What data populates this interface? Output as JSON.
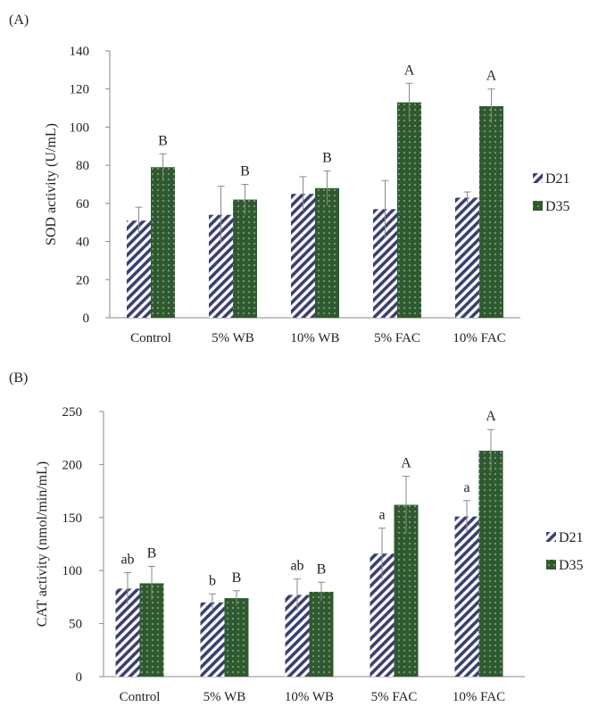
{
  "chart_data": [
    {
      "type": "bar",
      "panel_label": "(A)",
      "title": "",
      "xlabel": "",
      "ylabel": "SOD activity (U/mL)",
      "ylim": [
        0,
        140
      ],
      "yticks": [
        "0",
        "20",
        "40",
        "60",
        "80",
        "100",
        "120",
        "140"
      ],
      "categories": [
        "Control",
        "5% WB",
        "10% WB",
        "5% FAC",
        "10% FAC"
      ],
      "series": [
        {
          "name": "D21",
          "values": [
            51,
            54,
            65,
            57,
            63
          ],
          "errors": [
            7,
            15,
            9,
            15,
            3
          ],
          "letters": [
            "",
            "",
            "",
            "",
            ""
          ]
        },
        {
          "name": "D35",
          "values": [
            79,
            62,
            68,
            113,
            111
          ],
          "errors": [
            7,
            8,
            9,
            10,
            9
          ],
          "letters": [
            "B",
            "B",
            "B",
            "A",
            "A"
          ]
        }
      ],
      "legend": [
        "D21",
        "D35"
      ]
    },
    {
      "type": "bar",
      "panel_label": "(B)",
      "title": "",
      "xlabel": "",
      "ylabel": "CAT activity (nmol/min/mL)",
      "ylim": [
        0,
        250
      ],
      "yticks": [
        "0",
        "50",
        "100",
        "150",
        "200",
        "250"
      ],
      "categories": [
        "Control",
        "5% WB",
        "10% WB",
        "5% FAC",
        "10% FAC"
      ],
      "series": [
        {
          "name": "D21",
          "values": [
            83,
            70,
            77,
            116,
            151
          ],
          "errors": [
            15,
            8,
            15,
            24,
            15
          ],
          "letters": [
            "ab",
            "b",
            "ab",
            "a",
            "a"
          ]
        },
        {
          "name": "D35",
          "values": [
            88,
            74,
            80,
            162,
            213
          ],
          "errors": [
            16,
            7,
            9,
            27,
            20
          ],
          "letters": [
            "B",
            "B",
            "B",
            "A",
            "A"
          ]
        }
      ],
      "legend": [
        "D21",
        "D35"
      ]
    }
  ]
}
